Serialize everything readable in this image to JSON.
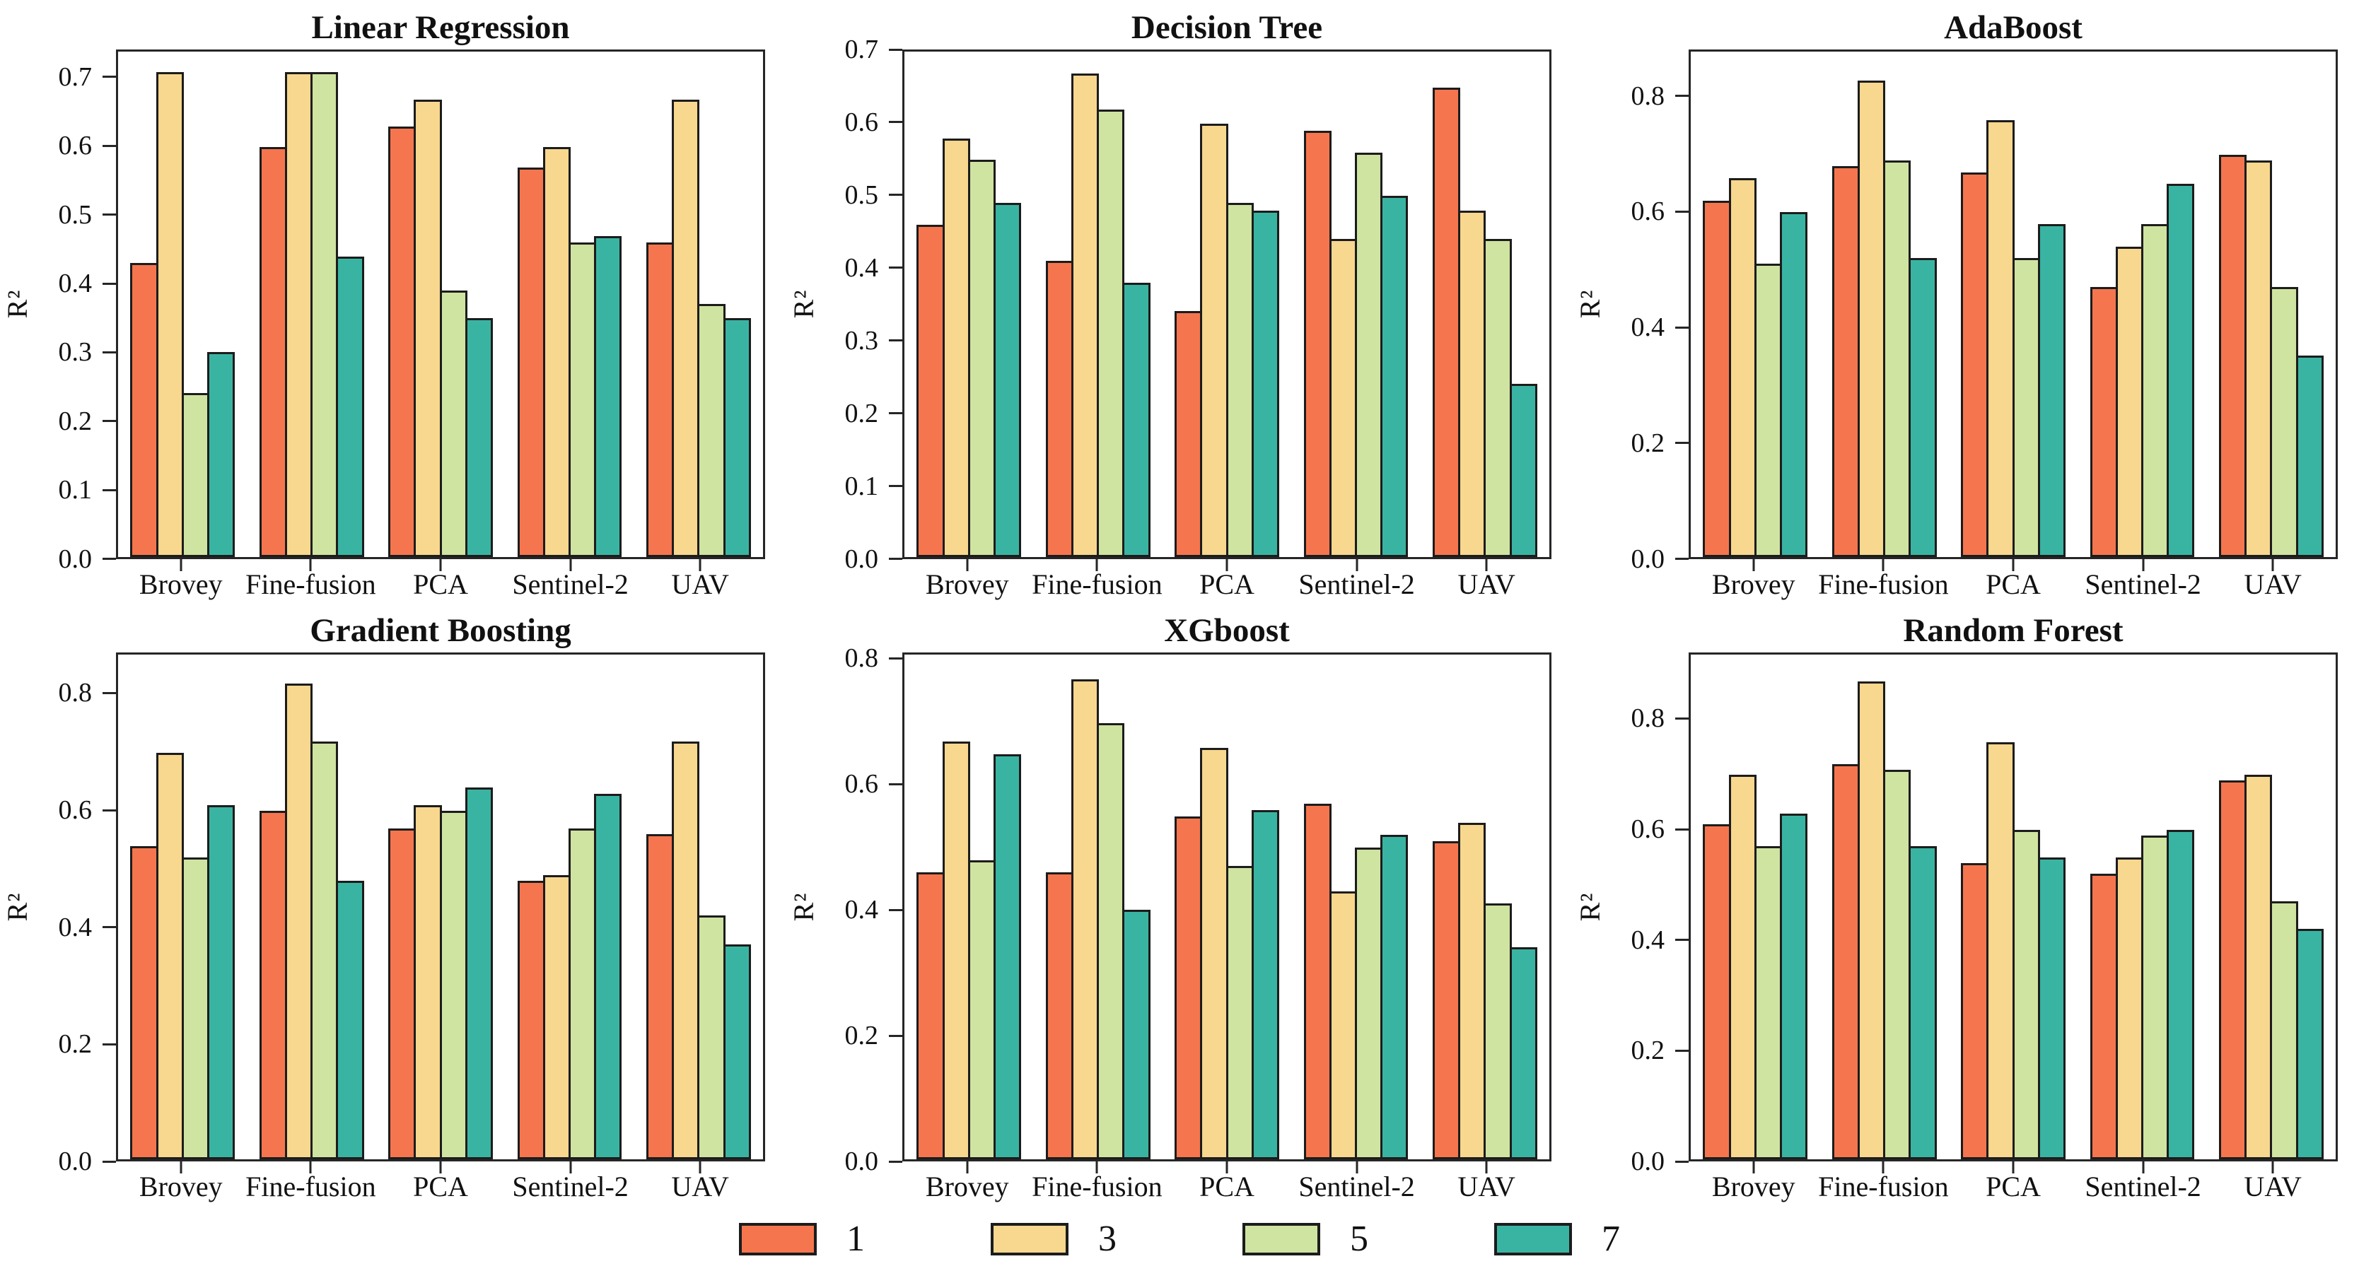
{
  "figure": {
    "background": "#ffffff",
    "bar_edge_color": "#1c1c1c",
    "axis_color": "#262626",
    "series_names": [
      "1",
      "3",
      "5",
      "7"
    ],
    "series_colors": [
      "#F5764E",
      "#F8D78E",
      "#CFE4A1",
      "#3AB4A2"
    ]
  },
  "chart_data": [
    {
      "type": "bar",
      "title": "Linear Regression",
      "ylabel": "R²",
      "ylim": [
        0,
        0.74
      ],
      "yticks": [
        0.0,
        0.1,
        0.2,
        0.3,
        0.4,
        0.5,
        0.6,
        0.7
      ],
      "grid": false,
      "legend_position": "shared-bottom",
      "categories": [
        "Brovey",
        "Fine-fusion",
        "PCA",
        "Sentinel-2",
        "UAV"
      ],
      "series": [
        {
          "name": "1",
          "values": [
            0.43,
            0.6,
            0.63,
            0.57,
            0.46
          ]
        },
        {
          "name": "3",
          "values": [
            0.71,
            0.71,
            0.67,
            0.6,
            0.67
          ]
        },
        {
          "name": "5",
          "values": [
            0.24,
            0.71,
            0.39,
            0.46,
            0.37
          ]
        },
        {
          "name": "7",
          "values": [
            0.3,
            0.44,
            0.35,
            0.47,
            0.35
          ]
        }
      ]
    },
    {
      "type": "bar",
      "title": "Decision Tree",
      "ylabel": "R²",
      "ylim": [
        0,
        0.7
      ],
      "yticks": [
        0.0,
        0.1,
        0.2,
        0.3,
        0.4,
        0.5,
        0.6,
        0.7
      ],
      "grid": false,
      "legend_position": "shared-bottom",
      "categories": [
        "Brovey",
        "Fine-fusion",
        "PCA",
        "Sentinel-2",
        "UAV"
      ],
      "series": [
        {
          "name": "1",
          "values": [
            0.46,
            0.41,
            0.34,
            0.59,
            0.65
          ]
        },
        {
          "name": "3",
          "values": [
            0.58,
            0.67,
            0.6,
            0.44,
            0.48
          ]
        },
        {
          "name": "5",
          "values": [
            0.55,
            0.62,
            0.49,
            0.56,
            0.44
          ]
        },
        {
          "name": "7",
          "values": [
            0.49,
            0.38,
            0.48,
            0.5,
            0.24
          ]
        }
      ]
    },
    {
      "type": "bar",
      "title": "AdaBoost",
      "ylabel": "R²",
      "ylim": [
        0,
        0.88
      ],
      "yticks": [
        0.0,
        0.2,
        0.4,
        0.6,
        0.8
      ],
      "grid": false,
      "legend_position": "shared-bottom",
      "categories": [
        "Brovey",
        "Fine-fusion",
        "PCA",
        "Sentinel-2",
        "UAV"
      ],
      "series": [
        {
          "name": "1",
          "values": [
            0.62,
            0.68,
            0.67,
            0.47,
            0.7
          ]
        },
        {
          "name": "3",
          "values": [
            0.66,
            0.83,
            0.76,
            0.54,
            0.69
          ]
        },
        {
          "name": "5",
          "values": [
            0.51,
            0.69,
            0.52,
            0.58,
            0.47
          ]
        },
        {
          "name": "7",
          "values": [
            0.6,
            0.52,
            0.58,
            0.65,
            0.35
          ]
        }
      ]
    },
    {
      "type": "bar",
      "title": "Gradient Boosting",
      "ylabel": "R²",
      "ylim": [
        0,
        0.87
      ],
      "yticks": [
        0.0,
        0.2,
        0.4,
        0.6,
        0.8
      ],
      "grid": false,
      "legend_position": "shared-bottom",
      "categories": [
        "Brovey",
        "Fine-fusion",
        "PCA",
        "Sentinel-2",
        "UAV"
      ],
      "series": [
        {
          "name": "1",
          "values": [
            0.54,
            0.6,
            0.57,
            0.48,
            0.56
          ]
        },
        {
          "name": "3",
          "values": [
            0.7,
            0.82,
            0.61,
            0.49,
            0.72
          ]
        },
        {
          "name": "5",
          "values": [
            0.52,
            0.72,
            0.6,
            0.57,
            0.42
          ]
        },
        {
          "name": "7",
          "values": [
            0.61,
            0.48,
            0.64,
            0.63,
            0.37
          ]
        }
      ]
    },
    {
      "type": "bar",
      "title": "XGboost",
      "ylabel": "R²",
      "ylim": [
        0,
        0.81
      ],
      "yticks": [
        0.0,
        0.2,
        0.4,
        0.6,
        0.8
      ],
      "grid": false,
      "legend_position": "shared-bottom",
      "categories": [
        "Brovey",
        "Fine-fusion",
        "PCA",
        "Sentinel-2",
        "UAV"
      ],
      "series": [
        {
          "name": "1",
          "values": [
            0.46,
            0.46,
            0.55,
            0.57,
            0.51
          ]
        },
        {
          "name": "3",
          "values": [
            0.67,
            0.77,
            0.66,
            0.43,
            0.54
          ]
        },
        {
          "name": "5",
          "values": [
            0.48,
            0.7,
            0.47,
            0.5,
            0.41
          ]
        },
        {
          "name": "7",
          "values": [
            0.65,
            0.4,
            0.56,
            0.52,
            0.34
          ]
        }
      ]
    },
    {
      "type": "bar",
      "title": "Random Forest",
      "ylabel": "R²",
      "ylim": [
        0,
        0.92
      ],
      "yticks": [
        0.0,
        0.2,
        0.4,
        0.6,
        0.8
      ],
      "grid": false,
      "legend_position": "shared-bottom",
      "categories": [
        "Brovey",
        "Fine-fusion",
        "PCA",
        "Sentinel-2",
        "UAV"
      ],
      "series": [
        {
          "name": "1",
          "values": [
            0.61,
            0.72,
            0.54,
            0.52,
            0.69
          ]
        },
        {
          "name": "3",
          "values": [
            0.7,
            0.87,
            0.76,
            0.55,
            0.7
          ]
        },
        {
          "name": "5",
          "values": [
            0.57,
            0.71,
            0.6,
            0.59,
            0.47
          ]
        },
        {
          "name": "7",
          "values": [
            0.63,
            0.57,
            0.55,
            0.6,
            0.42
          ]
        }
      ]
    }
  ],
  "legend": {
    "entries": [
      {
        "label": "1",
        "color": "#F5764E"
      },
      {
        "label": "3",
        "color": "#F8D78E"
      },
      {
        "label": "5",
        "color": "#CFE4A1"
      },
      {
        "label": "7",
        "color": "#3AB4A2"
      }
    ]
  }
}
